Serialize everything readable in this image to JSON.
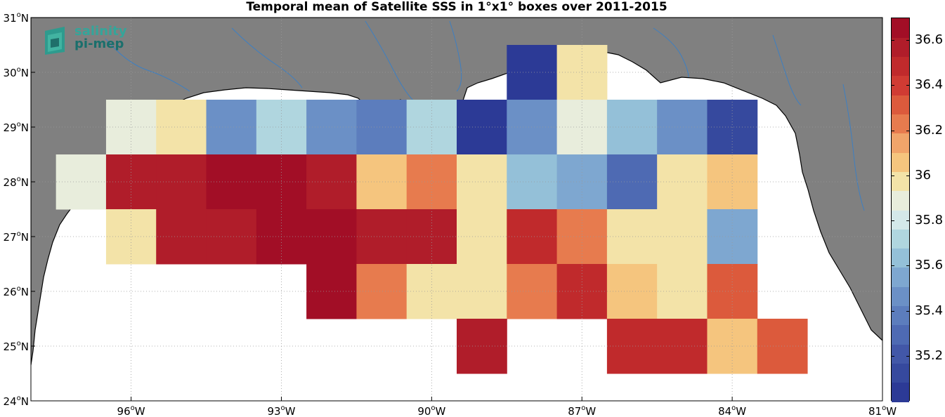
{
  "title": "Temporal mean of Satellite SSS in 1°x1° boxes over 2011-2015",
  "logo": {
    "line1": "salinity",
    "line2": "pi-mep"
  },
  "colors": {
    "land": "#808080",
    "ocean": "#ffffff",
    "rivers": "#3d7fc2",
    "grid": "#b0b0b0"
  },
  "axes": {
    "lon_range": [
      -98,
      -81
    ],
    "lat_range": [
      24,
      31
    ],
    "lon_ticks": [
      {
        "value": -96,
        "text": "96",
        "hemi": "W"
      },
      {
        "value": -93,
        "text": "93",
        "hemi": "W"
      },
      {
        "value": -90,
        "text": "90",
        "hemi": "W"
      },
      {
        "value": -87,
        "text": "87",
        "hemi": "W"
      },
      {
        "value": -84,
        "text": "84",
        "hemi": "W"
      },
      {
        "value": -81,
        "text": "81",
        "hemi": "W"
      }
    ],
    "lat_ticks": [
      {
        "value": 24,
        "text": "24",
        "hemi": "N"
      },
      {
        "value": 25,
        "text": "25",
        "hemi": "N"
      },
      {
        "value": 26,
        "text": "26",
        "hemi": "N"
      },
      {
        "value": 27,
        "text": "27",
        "hemi": "N"
      },
      {
        "value": 28,
        "text": "28",
        "hemi": "N"
      },
      {
        "value": 29,
        "text": "29",
        "hemi": "N"
      },
      {
        "value": 30,
        "text": "30",
        "hemi": "N"
      },
      {
        "value": 31,
        "text": "31",
        "hemi": "N"
      }
    ],
    "grid": true
  },
  "colorbar": {
    "range": [
      35.0,
      36.7
    ],
    "ticks": [
      {
        "value": 35.2,
        "label": "35.2"
      },
      {
        "value": 35.4,
        "label": "35.4"
      },
      {
        "value": 35.6,
        "label": "35.6"
      },
      {
        "value": 35.8,
        "label": "35.8"
      },
      {
        "value": 36.0,
        "label": "36"
      },
      {
        "value": 36.2,
        "label": "36.2"
      },
      {
        "value": 36.4,
        "label": "36.4"
      },
      {
        "value": 36.6,
        "label": "36.6"
      }
    ],
    "palette": [
      "#2c3a96",
      "#36499e",
      "#4257a8",
      "#4e6ab3",
      "#5c7dbd",
      "#6b90c6",
      "#7ea7d0",
      "#94c0d8",
      "#b0d6df",
      "#d4e8e9",
      "#e8eddc",
      "#f3e3a8",
      "#f5c57e",
      "#f0a46a",
      "#e77b4e",
      "#dc5a3c",
      "#d03b33",
      "#c02a2c",
      "#b01d2a",
      "#a20e26"
    ]
  },
  "cells": [
    {
      "lon": -88,
      "lat": 30,
      "v": 35.05
    },
    {
      "lon": -87,
      "lat": 30,
      "v": 36.0
    },
    {
      "lon": -96,
      "lat": 29,
      "v": 35.85
    },
    {
      "lon": -95,
      "lat": 29,
      "v": 36.0
    },
    {
      "lon": -94,
      "lat": 29,
      "v": 35.5
    },
    {
      "lon": -93,
      "lat": 29,
      "v": 35.7
    },
    {
      "lon": -92,
      "lat": 29,
      "v": 35.45
    },
    {
      "lon": -91,
      "lat": 29,
      "v": 35.4
    },
    {
      "lon": -90,
      "lat": 29,
      "v": 35.7
    },
    {
      "lon": -89,
      "lat": 29,
      "v": 35.05
    },
    {
      "lon": -88,
      "lat": 29,
      "v": 35.45
    },
    {
      "lon": -87,
      "lat": 29,
      "v": 35.85
    },
    {
      "lon": -86,
      "lat": 29,
      "v": 35.65
    },
    {
      "lon": -85,
      "lat": 29,
      "v": 35.5
    },
    {
      "lon": -84,
      "lat": 29,
      "v": 35.15
    },
    {
      "lon": -97,
      "lat": 28,
      "v": 35.85
    },
    {
      "lon": -96,
      "lat": 28,
      "v": 36.6
    },
    {
      "lon": -95,
      "lat": 28,
      "v": 36.55
    },
    {
      "lon": -94,
      "lat": 28,
      "v": 36.7
    },
    {
      "lon": -93,
      "lat": 28,
      "v": 36.7
    },
    {
      "lon": -92,
      "lat": 28,
      "v": 36.55
    },
    {
      "lon": -91,
      "lat": 28,
      "v": 36.1
    },
    {
      "lon": -90,
      "lat": 28,
      "v": 36.25
    },
    {
      "lon": -89,
      "lat": 28,
      "v": 36.0
    },
    {
      "lon": -88,
      "lat": 28,
      "v": 35.65
    },
    {
      "lon": -87,
      "lat": 28,
      "v": 35.55
    },
    {
      "lon": -86,
      "lat": 28,
      "v": 35.3
    },
    {
      "lon": -85,
      "lat": 28,
      "v": 36.0
    },
    {
      "lon": -84,
      "lat": 28,
      "v": 36.1
    },
    {
      "lon": -96,
      "lat": 27,
      "v": 36.0
    },
    {
      "lon": -95,
      "lat": 27,
      "v": 36.55
    },
    {
      "lon": -94,
      "lat": 27,
      "v": 36.6
    },
    {
      "lon": -93,
      "lat": 27,
      "v": 36.7
    },
    {
      "lon": -92,
      "lat": 27,
      "v": 36.7
    },
    {
      "lon": -91,
      "lat": 27,
      "v": 36.6
    },
    {
      "lon": -90,
      "lat": 27,
      "v": 36.6
    },
    {
      "lon": -89,
      "lat": 27,
      "v": 36.0
    },
    {
      "lon": -88,
      "lat": 27,
      "v": 36.5
    },
    {
      "lon": -87,
      "lat": 27,
      "v": 36.2
    },
    {
      "lon": -86,
      "lat": 27,
      "v": 36.0
    },
    {
      "lon": -85,
      "lat": 27,
      "v": 35.95
    },
    {
      "lon": -84,
      "lat": 27,
      "v": 35.55
    },
    {
      "lon": -92,
      "lat": 26,
      "v": 36.7
    },
    {
      "lon": -91,
      "lat": 26,
      "v": 36.2
    },
    {
      "lon": -90,
      "lat": 26,
      "v": 35.95
    },
    {
      "lon": -89,
      "lat": 26,
      "v": 35.95
    },
    {
      "lon": -88,
      "lat": 26,
      "v": 36.2
    },
    {
      "lon": -87,
      "lat": 26,
      "v": 36.45
    },
    {
      "lon": -86,
      "lat": 26,
      "v": 36.1
    },
    {
      "lon": -85,
      "lat": 26,
      "v": 35.95
    },
    {
      "lon": -84,
      "lat": 26,
      "v": 36.3
    },
    {
      "lon": -89,
      "lat": 25,
      "v": 36.6
    },
    {
      "lon": -86,
      "lat": 25,
      "v": 36.5
    },
    {
      "lon": -85,
      "lat": 25,
      "v": 36.45
    },
    {
      "lon": -84,
      "lat": 25,
      "v": 36.1
    },
    {
      "lon": -83,
      "lat": 25,
      "v": 36.3
    }
  ]
}
